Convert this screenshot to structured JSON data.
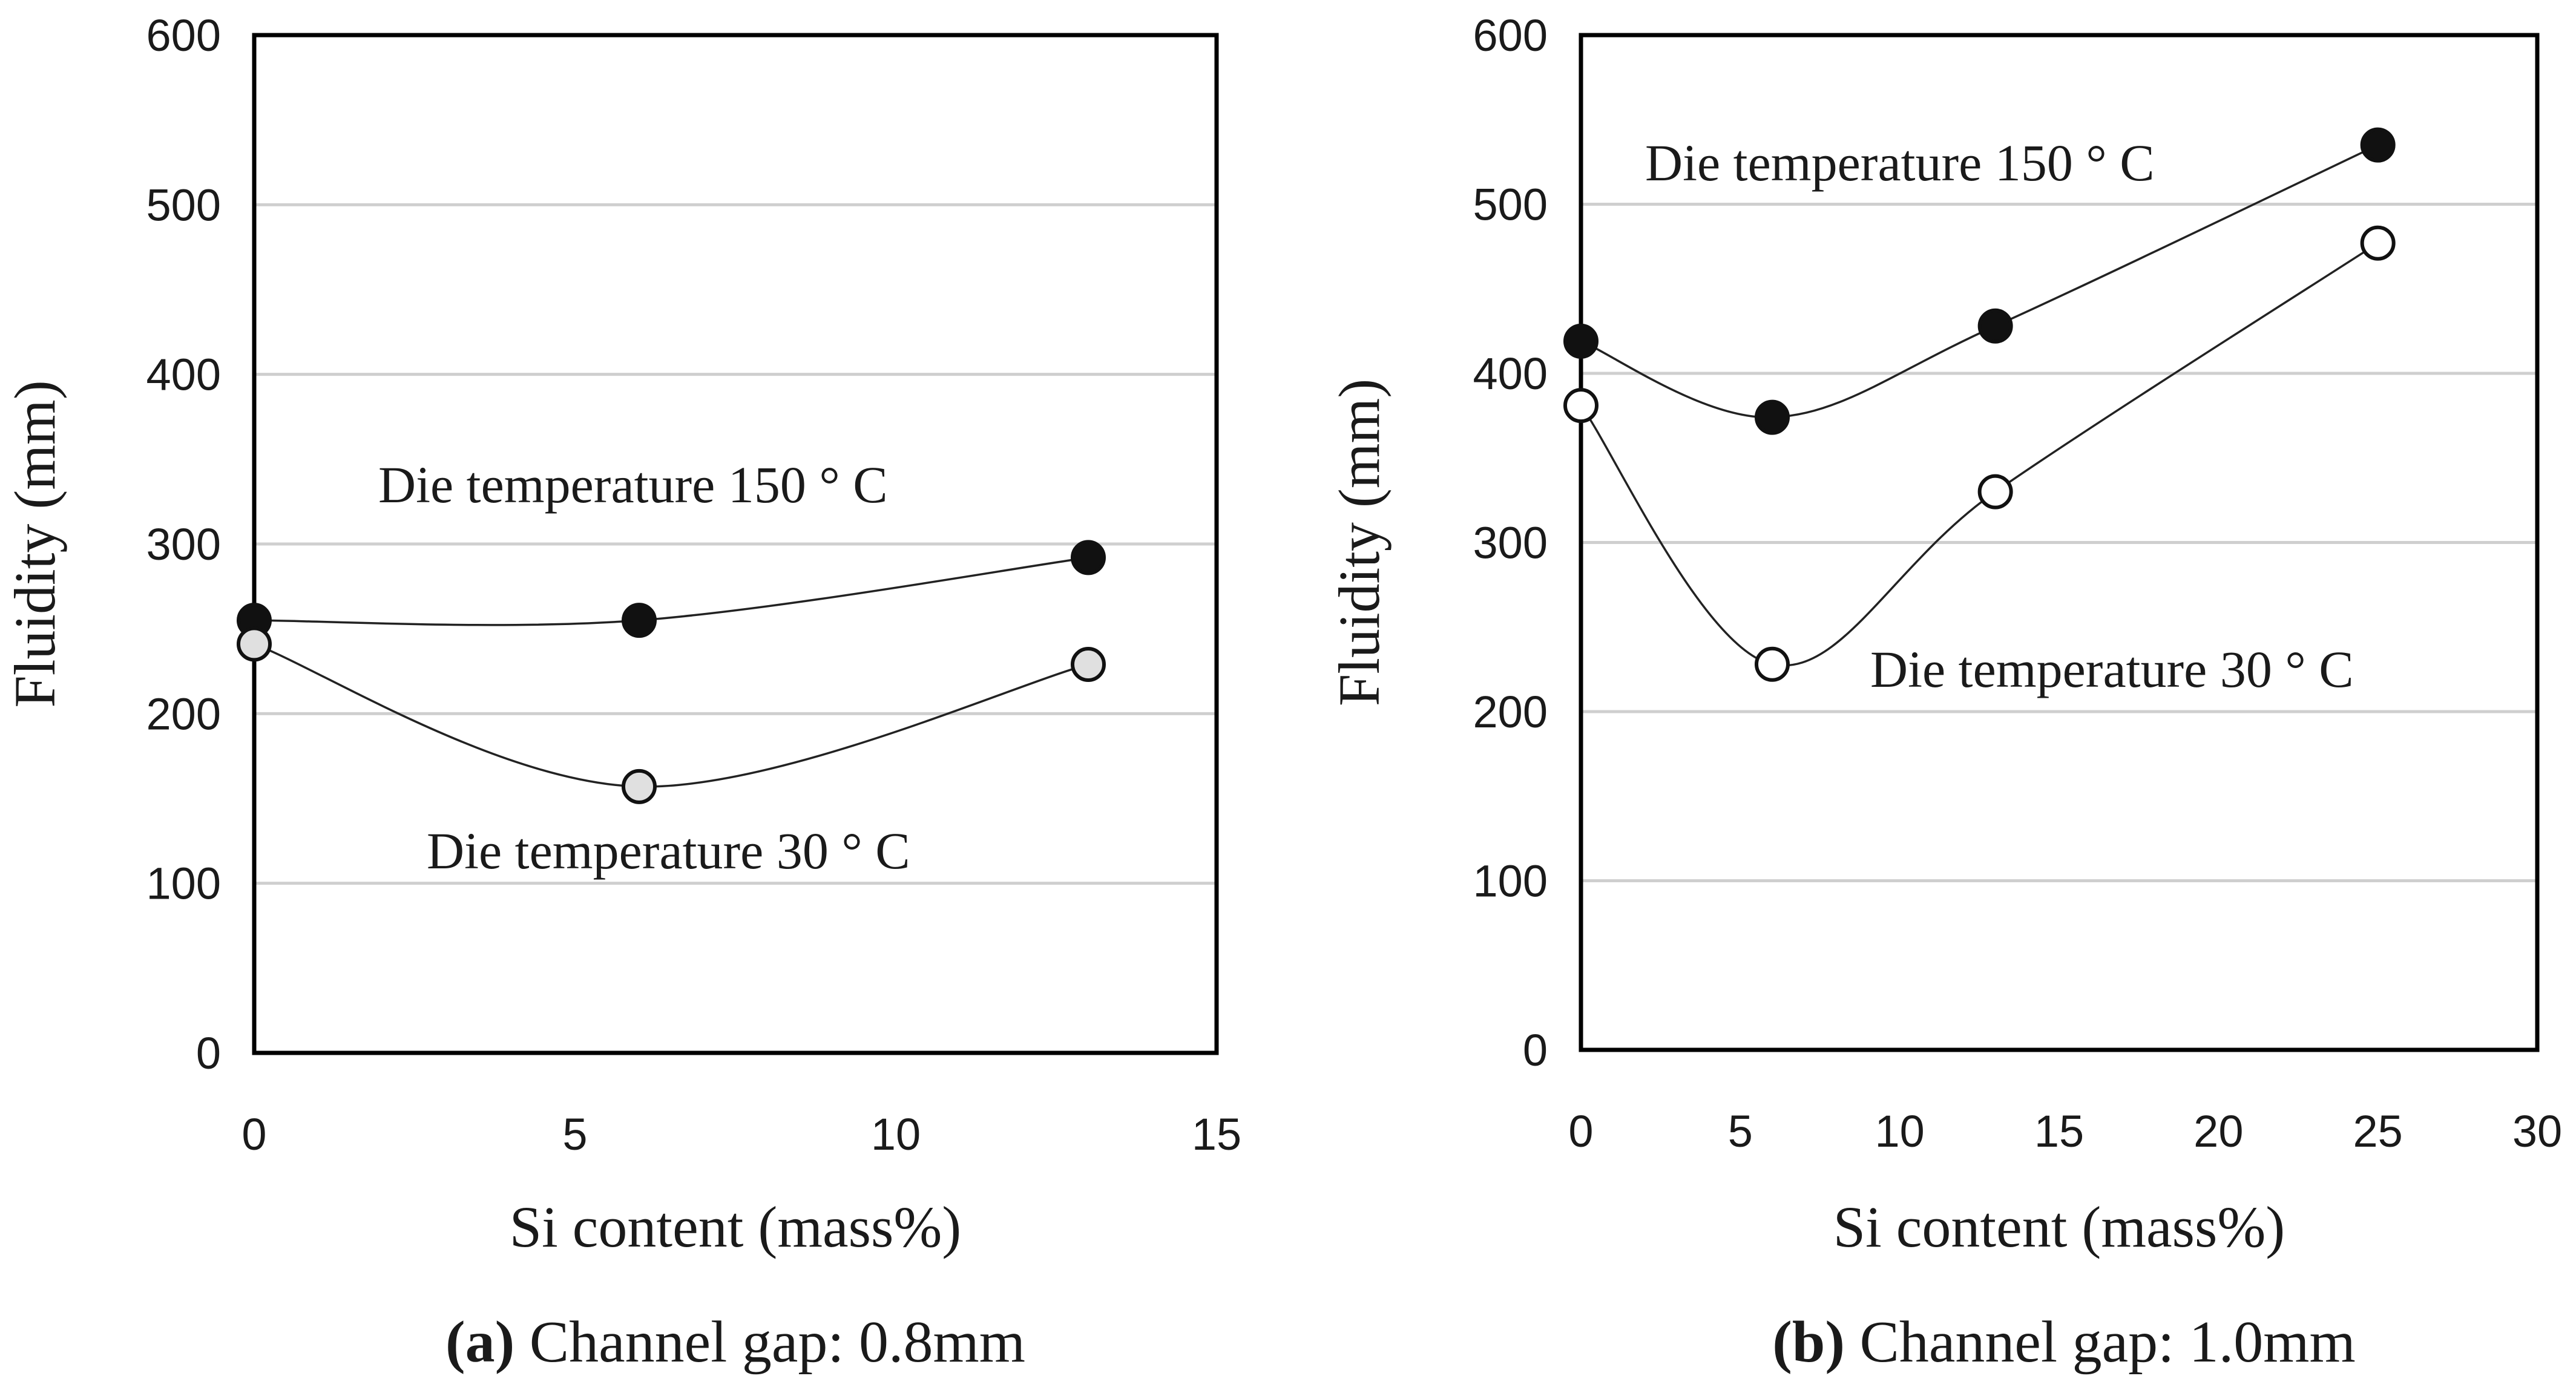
{
  "chart_data": [
    {
      "type": "line",
      "caption_tag": "(a)",
      "caption_text": " Channel gap: 0.8mm",
      "xlabel": "Si content (mass%)",
      "ylabel": "Fluidity (mm)",
      "xlim": [
        0,
        15
      ],
      "ylim": [
        0,
        600
      ],
      "xticks": [
        "0",
        "5",
        "10",
        "15"
      ],
      "yticks": [
        "0",
        "100",
        "200",
        "300",
        "400",
        "500",
        "600"
      ],
      "x": [
        0,
        6,
        13
      ],
      "series": [
        {
          "name": "Die temperature 150 °C",
          "label": "Die temperature 150  ° C",
          "values": [
            255,
            255,
            292
          ],
          "marker_fill": "#111111"
        },
        {
          "name": "Die temperature 30 °C",
          "label": "Die temperature 30  ° C",
          "values": [
            241,
            157,
            229
          ],
          "marker_fill": "#e0e0e0"
        }
      ]
    },
    {
      "type": "line",
      "caption_tag": "(b)",
      "caption_text": " Channel gap: 1.0mm",
      "xlabel": "Si content (mass%)",
      "ylabel": "Fluidity (mm)",
      "xlim": [
        0,
        30
      ],
      "ylim": [
        0,
        600
      ],
      "xticks": [
        "0",
        "5",
        "10",
        "15",
        "20",
        "25",
        "30"
      ],
      "yticks": [
        "0",
        "100",
        "200",
        "300",
        "400",
        "500",
        "600"
      ],
      "x": [
        0,
        6,
        13,
        25
      ],
      "series": [
        {
          "name": "Die temperature 150 °C",
          "label": "Die temperature 150  ° C",
          "values": [
            419,
            374,
            428,
            535
          ],
          "marker_fill": "#111111"
        },
        {
          "name": "Die temperature 30 °C",
          "label": "Die temperature 30  ° C",
          "values": [
            381,
            228,
            330,
            477
          ],
          "marker_fill": "#ffffff"
        }
      ]
    }
  ]
}
